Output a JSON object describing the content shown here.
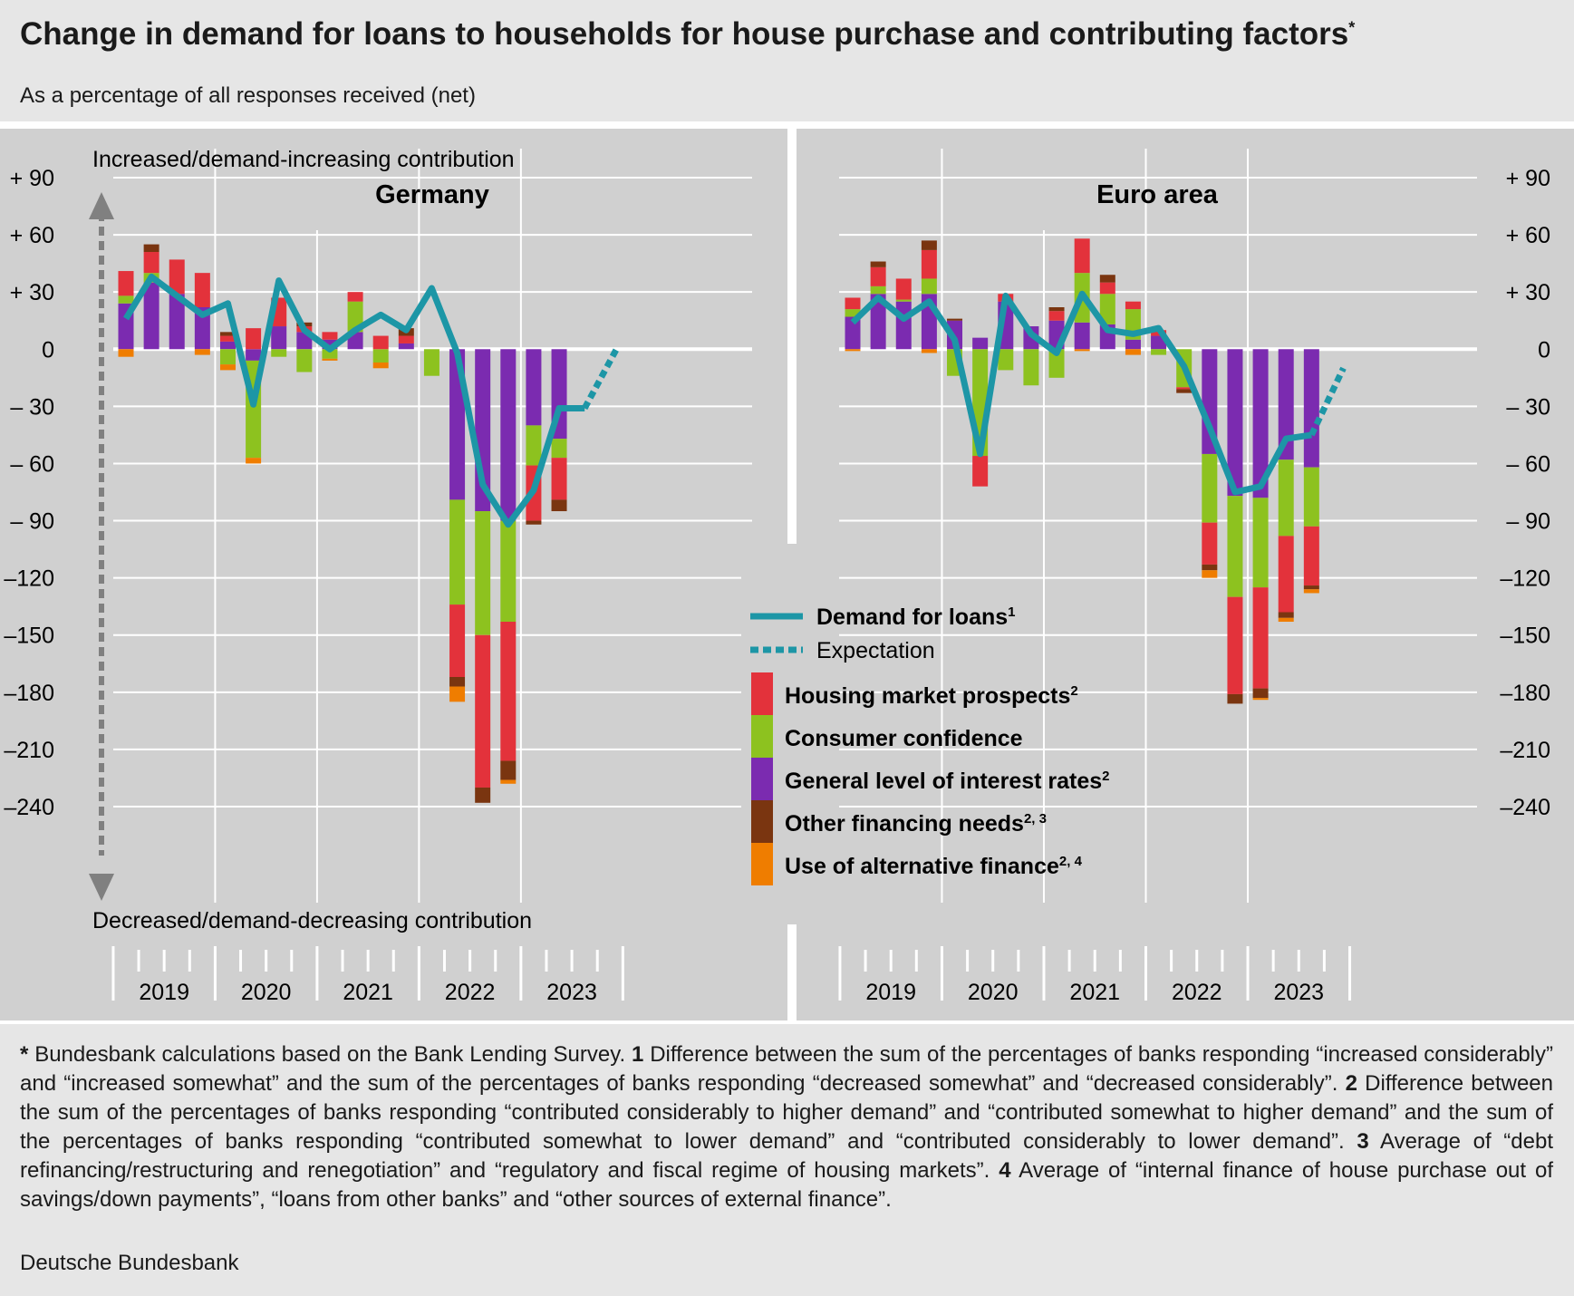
{
  "title": "Change in demand for loans to households for house purchase and contributing factors",
  "title_sup": "*",
  "subtitle": "As a percentage of all responses received (net)",
  "footnote": [
    {
      "b": "*",
      "t": " Bundesbank calculations based on the Bank Lending Survey. "
    },
    {
      "b": "1",
      "t": " Difference between the sum of the percentages of banks responding “increased considerably” and “increased somewhat” and the sum of the percentages of banks responding “decreased somewhat” and “decreased considerably”. "
    },
    {
      "b": "2",
      "t": " Difference between the sum of the percentages of banks responding “contributed considerably to higher demand” and “contributed somewhat to higher demand” and the sum of the percentages of banks responding “contributed somewhat to lower demand” and “contributed considerably to lower demand”. "
    },
    {
      "b": "3",
      "t": " Average of “debt refinancing/restructuring and renegotiation” and “regulatory and fiscal regime of housing markets”. "
    },
    {
      "b": "4",
      "t": " Average of “internal finance of house purchase out of savings/down payments”, “loans from other banks” and “other sources of external finance”."
    }
  ],
  "source": "Deutsche Bundesbank",
  "chart_data": {
    "type": "bar",
    "stacked": true,
    "ylim": [
      -240,
      90
    ],
    "yticks": [
      90,
      60,
      30,
      0,
      -30,
      -60,
      -90,
      -120,
      -150,
      -180,
      -210,
      -240
    ],
    "ytick_labels": [
      "+ 90",
      "+ 60",
      "+ 30",
      "0",
      "– 30",
      "– 60",
      "– 90",
      "–120",
      "–150",
      "–180",
      "–210",
      "–240"
    ],
    "ytick_labels_right": [
      "+ 90",
      "+ 60",
      "+ 30",
      "0",
      "– 30",
      "– 60",
      "– 90",
      "–120",
      "–150",
      "–180",
      "–210",
      "–240"
    ],
    "year_labels": [
      "2019",
      "2020",
      "2021",
      "2022",
      "2023"
    ],
    "top_axis_note": "Increased/demand-increasing contribution",
    "bottom_axis_note": "Decreased/demand-decreasing contribution",
    "legend": {
      "demand": "Demand for loans",
      "demand_sup": "1",
      "expectation": "Expectation",
      "housing": "Housing market prospects",
      "housing_sup": "2",
      "consumer": "Consumer confidence",
      "interest": "General level of interest rates",
      "interest_sup": "2",
      "other": "Other financing needs",
      "other_sup": "2, 3",
      "alt": "Use of alternative finance",
      "alt_sup": "2, 4"
    },
    "colors": {
      "housing": "#e3323b",
      "consumer": "#8dc21f",
      "interest": "#7b2bb0",
      "other": "#7a3510",
      "alt": "#ef7d00",
      "demand": "#1d96a6"
    },
    "series_order": [
      "interest",
      "consumer",
      "housing",
      "other",
      "alt"
    ],
    "panels": [
      {
        "title": "Germany",
        "quarters": [
          "2019 Q1",
          "2019 Q2",
          "2019 Q3",
          "2019 Q4",
          "2020 Q1",
          "2020 Q2",
          "2020 Q3",
          "2020 Q4",
          "2021 Q1",
          "2021 Q2",
          "2021 Q3",
          "2021 Q4",
          "2022 Q1",
          "2022 Q2",
          "2022 Q3",
          "2022 Q4",
          "2023 Q1",
          "2023 Q2",
          "2023 Q3"
        ],
        "bars": {
          "interest": [
            24,
            35,
            29,
            22,
            4,
            -6,
            12,
            9,
            5,
            9,
            0,
            3,
            0,
            -79,
            -85,
            -90,
            -40,
            -47,
            0
          ],
          "consumer": [
            4,
            5,
            0,
            0,
            -8,
            -51,
            -4,
            -12,
            -5,
            16,
            -7,
            0,
            -14,
            -55,
            -65,
            -53,
            -21,
            -10,
            0
          ],
          "housing": [
            13,
            11,
            18,
            18,
            3,
            11,
            15,
            3,
            4,
            5,
            7,
            4,
            0,
            -38,
            -80,
            -73,
            -29,
            -22,
            0
          ],
          "other": [
            0,
            4,
            0,
            0,
            2,
            0,
            0,
            2,
            0,
            0,
            0,
            4,
            0,
            -5,
            -8,
            -10,
            -2,
            -6,
            0
          ],
          "alt": [
            -4,
            0,
            0,
            -3,
            -3,
            -3,
            0,
            0,
            -1,
            0,
            -3,
            0,
            0,
            -8,
            0,
            -2,
            0,
            0,
            0
          ]
        },
        "demand": [
          16,
          38,
          28,
          18,
          24,
          -29,
          36,
          10,
          0,
          10,
          18,
          10,
          32,
          -2,
          -71,
          -92,
          -74,
          -31,
          -31
        ],
        "expectation": [
          -31,
          0
        ]
      },
      {
        "title": "Euro area",
        "quarters": [
          "2019 Q1",
          "2019 Q2",
          "2019 Q3",
          "2019 Q4",
          "2020 Q1",
          "2020 Q2",
          "2020 Q3",
          "2020 Q4",
          "2021 Q1",
          "2021 Q2",
          "2021 Q3",
          "2021 Q4",
          "2022 Q1",
          "2022 Q2",
          "2022 Q3",
          "2022 Q4",
          "2023 Q1",
          "2023 Q2",
          "2023 Q3"
        ],
        "bars": {
          "interest": [
            17,
            29,
            25,
            29,
            15,
            6,
            25,
            12,
            15,
            14,
            13,
            5,
            7,
            0,
            -55,
            -77,
            -78,
            -58,
            -62
          ],
          "consumer": [
            4,
            4,
            1,
            8,
            -14,
            -56,
            -11,
            -19,
            -15,
            26,
            16,
            16,
            -3,
            -20,
            -36,
            -53,
            -47,
            -40,
            -31
          ],
          "housing": [
            6,
            10,
            11,
            15,
            0,
            -16,
            4,
            0,
            5,
            18,
            6,
            4,
            3,
            -1,
            -22,
            -51,
            -53,
            -40,
            -31
          ],
          "other": [
            0,
            3,
            0,
            5,
            1,
            0,
            0,
            0,
            2,
            0,
            4,
            0,
            0,
            -2,
            -3,
            -5,
            -5,
            -3,
            -2
          ],
          "alt": [
            -1,
            0,
            0,
            -2,
            0,
            0,
            0,
            0,
            0,
            -1,
            0,
            -3,
            0,
            0,
            -4,
            0,
            -1,
            -2,
            -2
          ]
        },
        "demand": [
          14,
          27,
          16,
          25,
          5,
          -55,
          28,
          8,
          -2,
          29,
          10,
          8,
          11,
          -9,
          -41,
          -75,
          -72,
          -47,
          -45
        ],
        "expectation": [
          -45,
          -10
        ]
      }
    ]
  }
}
